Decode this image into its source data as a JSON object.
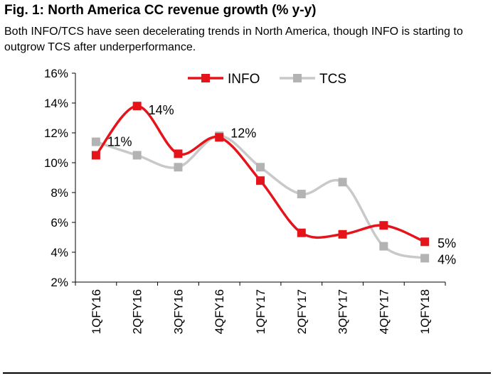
{
  "figure": {
    "title": "Fig. 1: North America CC revenue growth (% y-y)",
    "subtitle": "Both INFO/TCS have seen decelerating trends in North America, though INFO is starting to outgrow TCS after underperformance."
  },
  "chart_data": {
    "type": "line",
    "title": "Fig. 1: North America CC revenue growth (% y-y)",
    "xlabel": "",
    "ylabel": "",
    "ylim": [
      2,
      16
    ],
    "yticks": [
      2,
      4,
      6,
      8,
      10,
      12,
      14,
      16
    ],
    "ytick_labels": [
      "2%",
      "4%",
      "6%",
      "8%",
      "10%",
      "12%",
      "14%",
      "16%"
    ],
    "categories": [
      "1QFY16",
      "2QFY16",
      "3QFY16",
      "4QFY16",
      "1QFY17",
      "2QFY17",
      "3QFY17",
      "4QFY17",
      "1QFY18"
    ],
    "legend_position": "top-center",
    "series": [
      {
        "name": "INFO",
        "color": "#e5141b",
        "marker_color": "#e5141b",
        "values": [
          10.5,
          13.8,
          10.6,
          11.7,
          8.8,
          5.3,
          5.2,
          5.8,
          4.7
        ]
      },
      {
        "name": "TCS",
        "color": "#c9c9c9",
        "marker_color": "#b3b3b3",
        "values": [
          11.4,
          10.5,
          9.7,
          11.8,
          9.7,
          7.9,
          8.7,
          4.4,
          3.6
        ]
      }
    ],
    "annotations": [
      {
        "text": "14%",
        "category": "2QFY16",
        "value": 13.8
      },
      {
        "text": "11%",
        "category": "1QFY16",
        "value": 11.4
      },
      {
        "text": "12%",
        "category": "4QFY16",
        "value": 11.7
      },
      {
        "text": "5%",
        "category": "1QFY18",
        "value": 4.7
      },
      {
        "text": "4%",
        "category": "1QFY18",
        "value": 3.6
      }
    ]
  }
}
